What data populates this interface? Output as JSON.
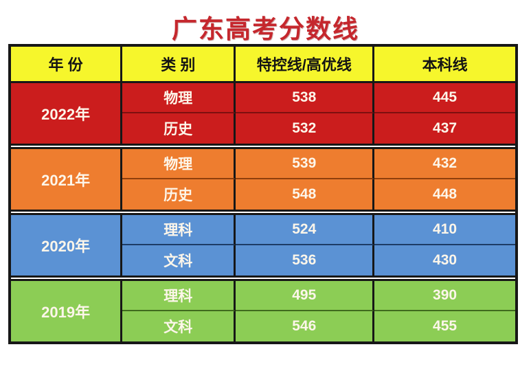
{
  "title": "广东高考分数线",
  "table": {
    "headers": [
      "年 份",
      "类 别",
      "特控线/高优线",
      "本科线"
    ],
    "sections": [
      {
        "year": "2022年",
        "rows": [
          [
            "物理",
            "538",
            "445"
          ],
          [
            "历史",
            "532",
            "437"
          ]
        ]
      },
      {
        "year": "2021年",
        "rows": [
          [
            "物理",
            "539",
            "432"
          ],
          [
            "历史",
            "548",
            "448"
          ]
        ]
      },
      {
        "year": "2020年",
        "rows": [
          [
            "理科",
            "524",
            "410"
          ],
          [
            "文科",
            "536",
            "430"
          ]
        ]
      },
      {
        "year": "2019年",
        "rows": [
          [
            "理科",
            "495",
            "390"
          ],
          [
            "文科",
            "546",
            "455"
          ]
        ]
      }
    ]
  },
  "colors": {
    "title_red": "#c5272d",
    "header_bg": "#f6f62c",
    "border_black": "#171717",
    "section_2022": "#cb1d1d",
    "section_2021": "#ee7d2f",
    "section_2020": "#5b92d4",
    "section_2019": "#8ccd55",
    "cell_text": "#fdf6ea"
  },
  "chart_data": {
    "type": "table",
    "title": "广东高考分数线",
    "columns": [
      "年 份",
      "类 别",
      "特控线/高优线",
      "本科线"
    ],
    "rows": [
      [
        "2022年",
        "物理",
        538,
        445
      ],
      [
        "2022年",
        "历史",
        532,
        437
      ],
      [
        "2021年",
        "物理",
        539,
        432
      ],
      [
        "2021年",
        "历史",
        548,
        448
      ],
      [
        "2020年",
        "理科",
        524,
        410
      ],
      [
        "2020年",
        "文科",
        536,
        430
      ],
      [
        "2019年",
        "理科",
        495,
        390
      ],
      [
        "2019年",
        "文科",
        546,
        455
      ]
    ]
  }
}
